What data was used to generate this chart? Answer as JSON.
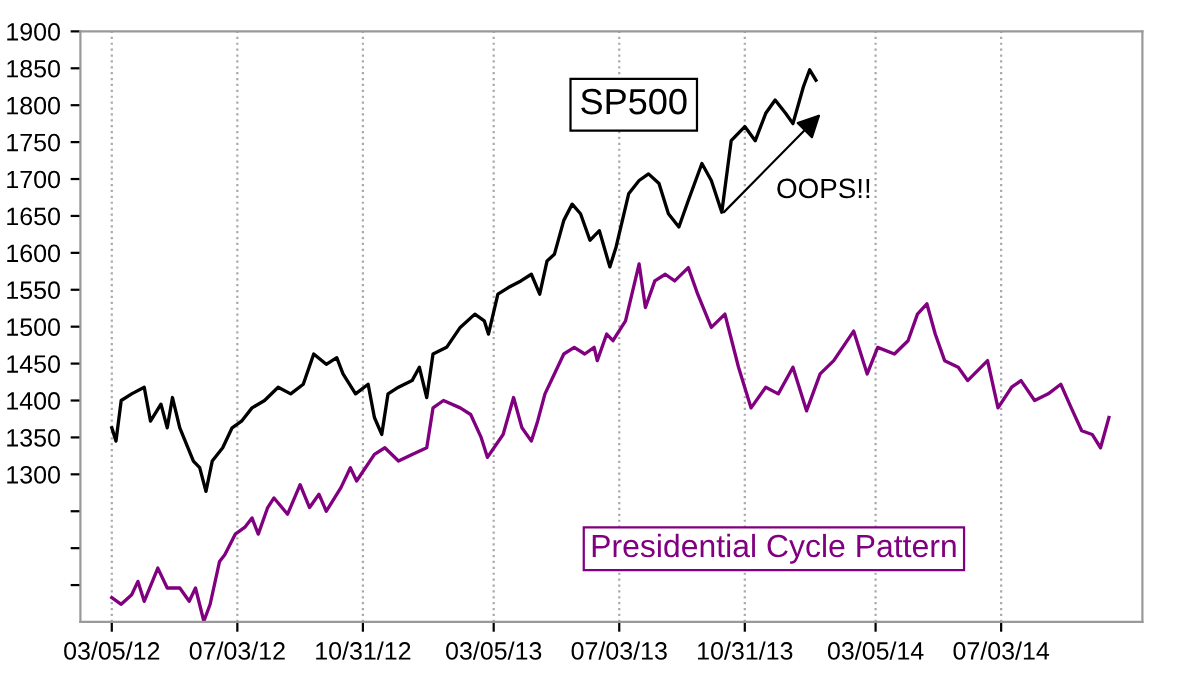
{
  "chart_data": {
    "type": "line",
    "xlim": [
      "2012-02-04",
      "2014-11-15"
    ],
    "ylim": [
      1100,
      1900
    ],
    "xticks": [
      {
        "value": "2012-03-05",
        "label": "03/05/12"
      },
      {
        "value": "2012-07-03",
        "label": "07/03/12"
      },
      {
        "value": "2012-10-31",
        "label": "10/31/12"
      },
      {
        "value": "2013-03-05",
        "label": "03/05/13"
      },
      {
        "value": "2013-07-03",
        "label": "07/03/13"
      },
      {
        "value": "2013-10-31",
        "label": "10/31/13"
      },
      {
        "value": "2014-03-05",
        "label": "03/05/14"
      },
      {
        "value": "2014-07-03",
        "label": "07/03/14"
      }
    ],
    "yticks": [
      {
        "value": 1150,
        "label": null
      },
      {
        "value": 1200,
        "label": null
      },
      {
        "value": 1250,
        "label": null
      },
      1300,
      1350,
      1400,
      1450,
      1500,
      1550,
      1600,
      1650,
      1700,
      1750,
      1800,
      1850,
      1900
    ],
    "grid": "x",
    "legend": false,
    "annotations": [
      "OOPS!!"
    ],
    "series": [
      {
        "name": "SP500",
        "color": "#000000",
        "x": [
          "2012-03-05",
          "2012-03-09",
          "2012-03-14",
          "2012-03-24",
          "2012-04-05",
          "2012-04-11",
          "2012-04-21",
          "2012-04-27",
          "2012-05-02",
          "2012-05-09",
          "2012-05-22",
          "2012-05-28",
          "2012-06-03",
          "2012-06-09",
          "2012-06-19",
          "2012-06-28",
          "2012-07-07",
          "2012-07-17",
          "2012-07-29",
          "2012-08-11",
          "2012-08-23",
          "2012-09-04",
          "2012-09-14",
          "2012-09-26",
          "2012-10-06",
          "2012-10-12",
          "2012-10-24",
          "2012-11-05",
          "2012-11-11",
          "2012-11-18",
          "2012-11-24",
          "2012-12-04",
          "2012-12-17",
          "2012-12-24",
          "2012-12-31",
          "2013-01-06",
          "2013-01-19",
          "2013-02-01",
          "2013-02-15",
          "2013-02-24",
          "2013-02-28",
          "2013-03-09",
          "2013-03-19",
          "2013-03-31",
          "2013-04-10",
          "2013-04-18",
          "2013-04-25",
          "2013-05-02",
          "2013-05-11",
          "2013-05-19",
          "2013-05-27",
          "2013-06-05",
          "2013-06-14",
          "2013-06-24",
          "2013-06-30",
          "2013-07-03",
          "2013-07-12",
          "2013-07-22",
          "2013-07-31",
          "2013-08-10",
          "2013-08-19",
          "2013-08-29",
          "2013-09-07",
          "2013-09-20",
          "2013-09-29",
          "2013-10-09",
          "2013-10-18",
          "2013-10-31",
          "2013-11-10",
          "2013-11-20",
          "2013-11-29",
          "2013-12-09",
          "2013-12-16",
          "2013-12-26",
          "2014-01-01",
          "2014-01-07"
        ],
        "values": [
          1363,
          1345,
          1400,
          1409,
          1418,
          1372,
          1395,
          1363,
          1404,
          1363,
          1318,
          1309,
          1277,
          1318,
          1336,
          1363,
          1372,
          1390,
          1400,
          1418,
          1409,
          1422,
          1463,
          1449,
          1458,
          1436,
          1409,
          1422,
          1377,
          1354,
          1409,
          1418,
          1427,
          1445,
          1404,
          1463,
          1472,
          1499,
          1517,
          1508,
          1490,
          1544,
          1553,
          1562,
          1571,
          1544,
          1589,
          1598,
          1644,
          1666,
          1653,
          1617,
          1630,
          1581,
          1608,
          1626,
          1680,
          1698,
          1707,
          1694,
          1653,
          1635,
          1671,
          1721,
          1698,
          1655,
          1752,
          1771,
          1752,
          1789,
          1807,
          1789,
          1775,
          1825,
          1848,
          1834
        ]
      },
      {
        "name": "Presidential Cycle Pattern",
        "color": "#800080",
        "x": [
          "2012-03-05",
          "2012-03-14",
          "2012-03-24",
          "2012-03-30",
          "2012-04-05",
          "2012-04-18",
          "2012-04-27",
          "2012-05-09",
          "2012-05-18",
          "2012-05-24",
          "2012-06-01",
          "2012-06-07",
          "2012-06-16",
          "2012-06-21",
          "2012-07-01",
          "2012-07-10",
          "2012-07-17",
          "2012-07-23",
          "2012-08-01",
          "2012-08-07",
          "2012-08-20",
          "2012-09-01",
          "2012-09-10",
          "2012-09-19",
          "2012-09-26",
          "2012-10-10",
          "2012-10-19",
          "2012-10-25",
          "2012-11-11",
          "2012-11-21",
          "2012-12-04",
          "2012-12-17",
          "2012-12-31",
          "2013-01-06",
          "2013-01-16",
          "2013-02-01",
          "2013-02-11",
          "2013-02-21",
          "2013-02-27",
          "2013-03-14",
          "2013-03-24",
          "2013-04-01",
          "2013-04-10",
          "2013-04-16",
          "2013-04-23",
          "2013-05-02",
          "2013-05-11",
          "2013-05-21",
          "2013-05-31",
          "2013-06-09",
          "2013-06-12",
          "2013-06-21",
          "2013-06-27",
          "2013-07-09",
          "2013-07-22",
          "2013-07-28",
          "2013-08-06",
          "2013-08-16",
          "2013-08-25",
          "2013-09-07",
          "2013-09-16",
          "2013-09-29",
          "2013-10-12",
          "2013-10-25",
          "2013-11-06",
          "2013-11-20",
          "2013-12-02",
          "2013-12-16",
          "2013-12-29",
          "2014-01-11",
          "2014-01-24",
          "2014-02-12",
          "2014-02-25",
          "2014-03-07",
          "2014-03-23",
          "2014-04-05",
          "2014-04-14",
          "2014-04-23",
          "2014-05-01",
          "2014-05-10",
          "2014-05-23",
          "2014-06-01",
          "2014-06-20",
          "2014-06-30",
          "2014-07-13",
          "2014-07-22",
          "2014-08-04",
          "2014-08-17",
          "2014-08-29",
          "2014-09-08",
          "2014-09-18",
          "2014-09-28",
          "2014-10-06",
          "2014-10-14"
        ],
        "values": [
          1133,
          1124,
          1137,
          1155,
          1128,
          1173,
          1146,
          1146,
          1128,
          1146,
          1101,
          1124,
          1182,
          1191,
          1219,
          1228,
          1241,
          1219,
          1255,
          1268,
          1246,
          1286,
          1255,
          1273,
          1250,
          1282,
          1309,
          1291,
          1327,
          1336,
          1318,
          1327,
          1336,
          1390,
          1400,
          1390,
          1381,
          1350,
          1323,
          1354,
          1404,
          1363,
          1345,
          1372,
          1409,
          1436,
          1463,
          1472,
          1463,
          1472,
          1454,
          1490,
          1481,
          1508,
          1585,
          1526,
          1562,
          1571,
          1562,
          1580,
          1544,
          1499,
          1517,
          1445,
          1390,
          1418,
          1409,
          1445,
          1386,
          1436,
          1454,
          1494,
          1436,
          1472,
          1463,
          1481,
          1517,
          1531,
          1490,
          1454,
          1445,
          1427,
          1454,
          1390,
          1418,
          1427,
          1400,
          1409,
          1422,
          1390,
          1359,
          1354,
          1336,
          1377
        ]
      }
    ]
  }
}
